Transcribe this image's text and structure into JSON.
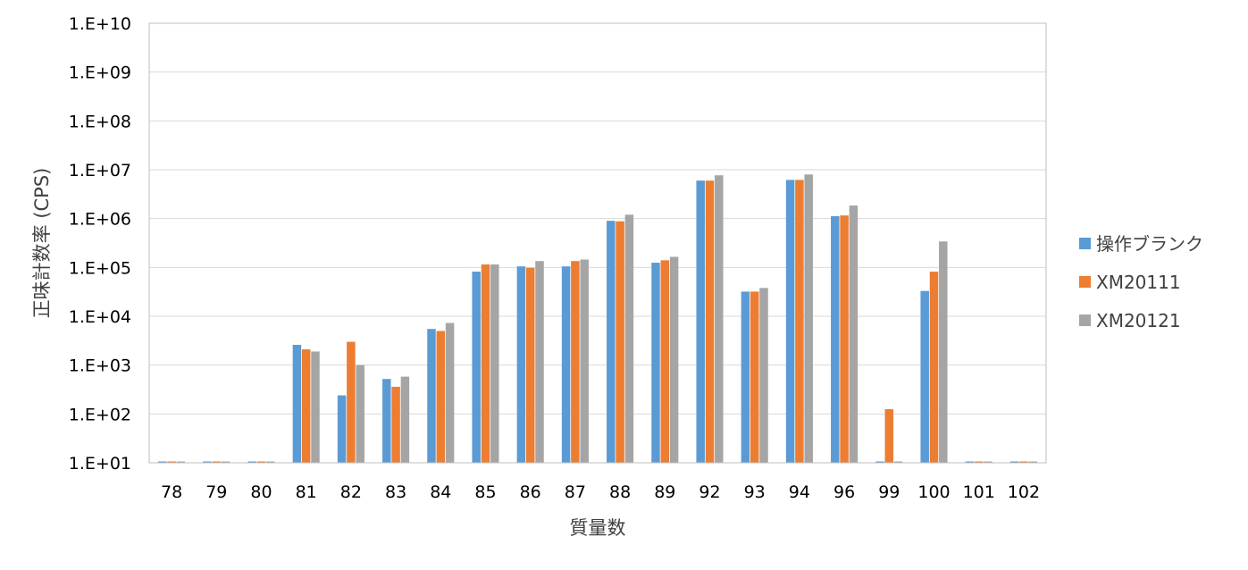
{
  "chart_data": {
    "type": "bar",
    "xlabel": "質量数",
    "ylabel": "正味計数率 (CPS)",
    "y_scale": "log",
    "ylim": [
      10,
      10000000000
    ],
    "y_tick_values": [
      10,
      100,
      1000,
      10000,
      100000,
      1000000,
      10000000,
      100000000,
      1000000000,
      10000000000
    ],
    "y_tick_labels": [
      "1.E+01",
      "1.E+02",
      "1.E+03",
      "1.E+04",
      "1.E+05",
      "1.E+06",
      "1.E+07",
      "1.E+08",
      "1.E+09",
      "1.E+10"
    ],
    "grid": true,
    "legend_position": "right",
    "categories": [
      "78",
      "79",
      "80",
      "81",
      "82",
      "83",
      "84",
      "85",
      "86",
      "87",
      "88",
      "89",
      "92",
      "93",
      "94",
      "96",
      "99",
      "100",
      "101",
      "102"
    ],
    "series": [
      {
        "name": "操作ブランク",
        "color": "#5B9BD5",
        "values": [
          10,
          10,
          10,
          2600,
          240,
          520,
          5500,
          82000,
          105000,
          105000,
          900000,
          125000,
          6000000,
          32000,
          6200000,
          1120000,
          10,
          33000,
          10,
          10
        ]
      },
      {
        "name": "XM20111",
        "color": "#ED7D31",
        "values": [
          10,
          10,
          10,
          2100,
          3000,
          360,
          5000,
          115000,
          98000,
          135000,
          880000,
          140000,
          6000000,
          32000,
          6200000,
          1160000,
          125,
          82000,
          10,
          10
        ]
      },
      {
        "name": "XM20121",
        "color": "#A5A5A5",
        "values": [
          10,
          10,
          10,
          1900,
          1000,
          580,
          7300,
          115000,
          135000,
          145000,
          1200000,
          165000,
          7700000,
          38000,
          8000000,
          1850000,
          10,
          340000,
          10,
          10
        ]
      }
    ]
  }
}
